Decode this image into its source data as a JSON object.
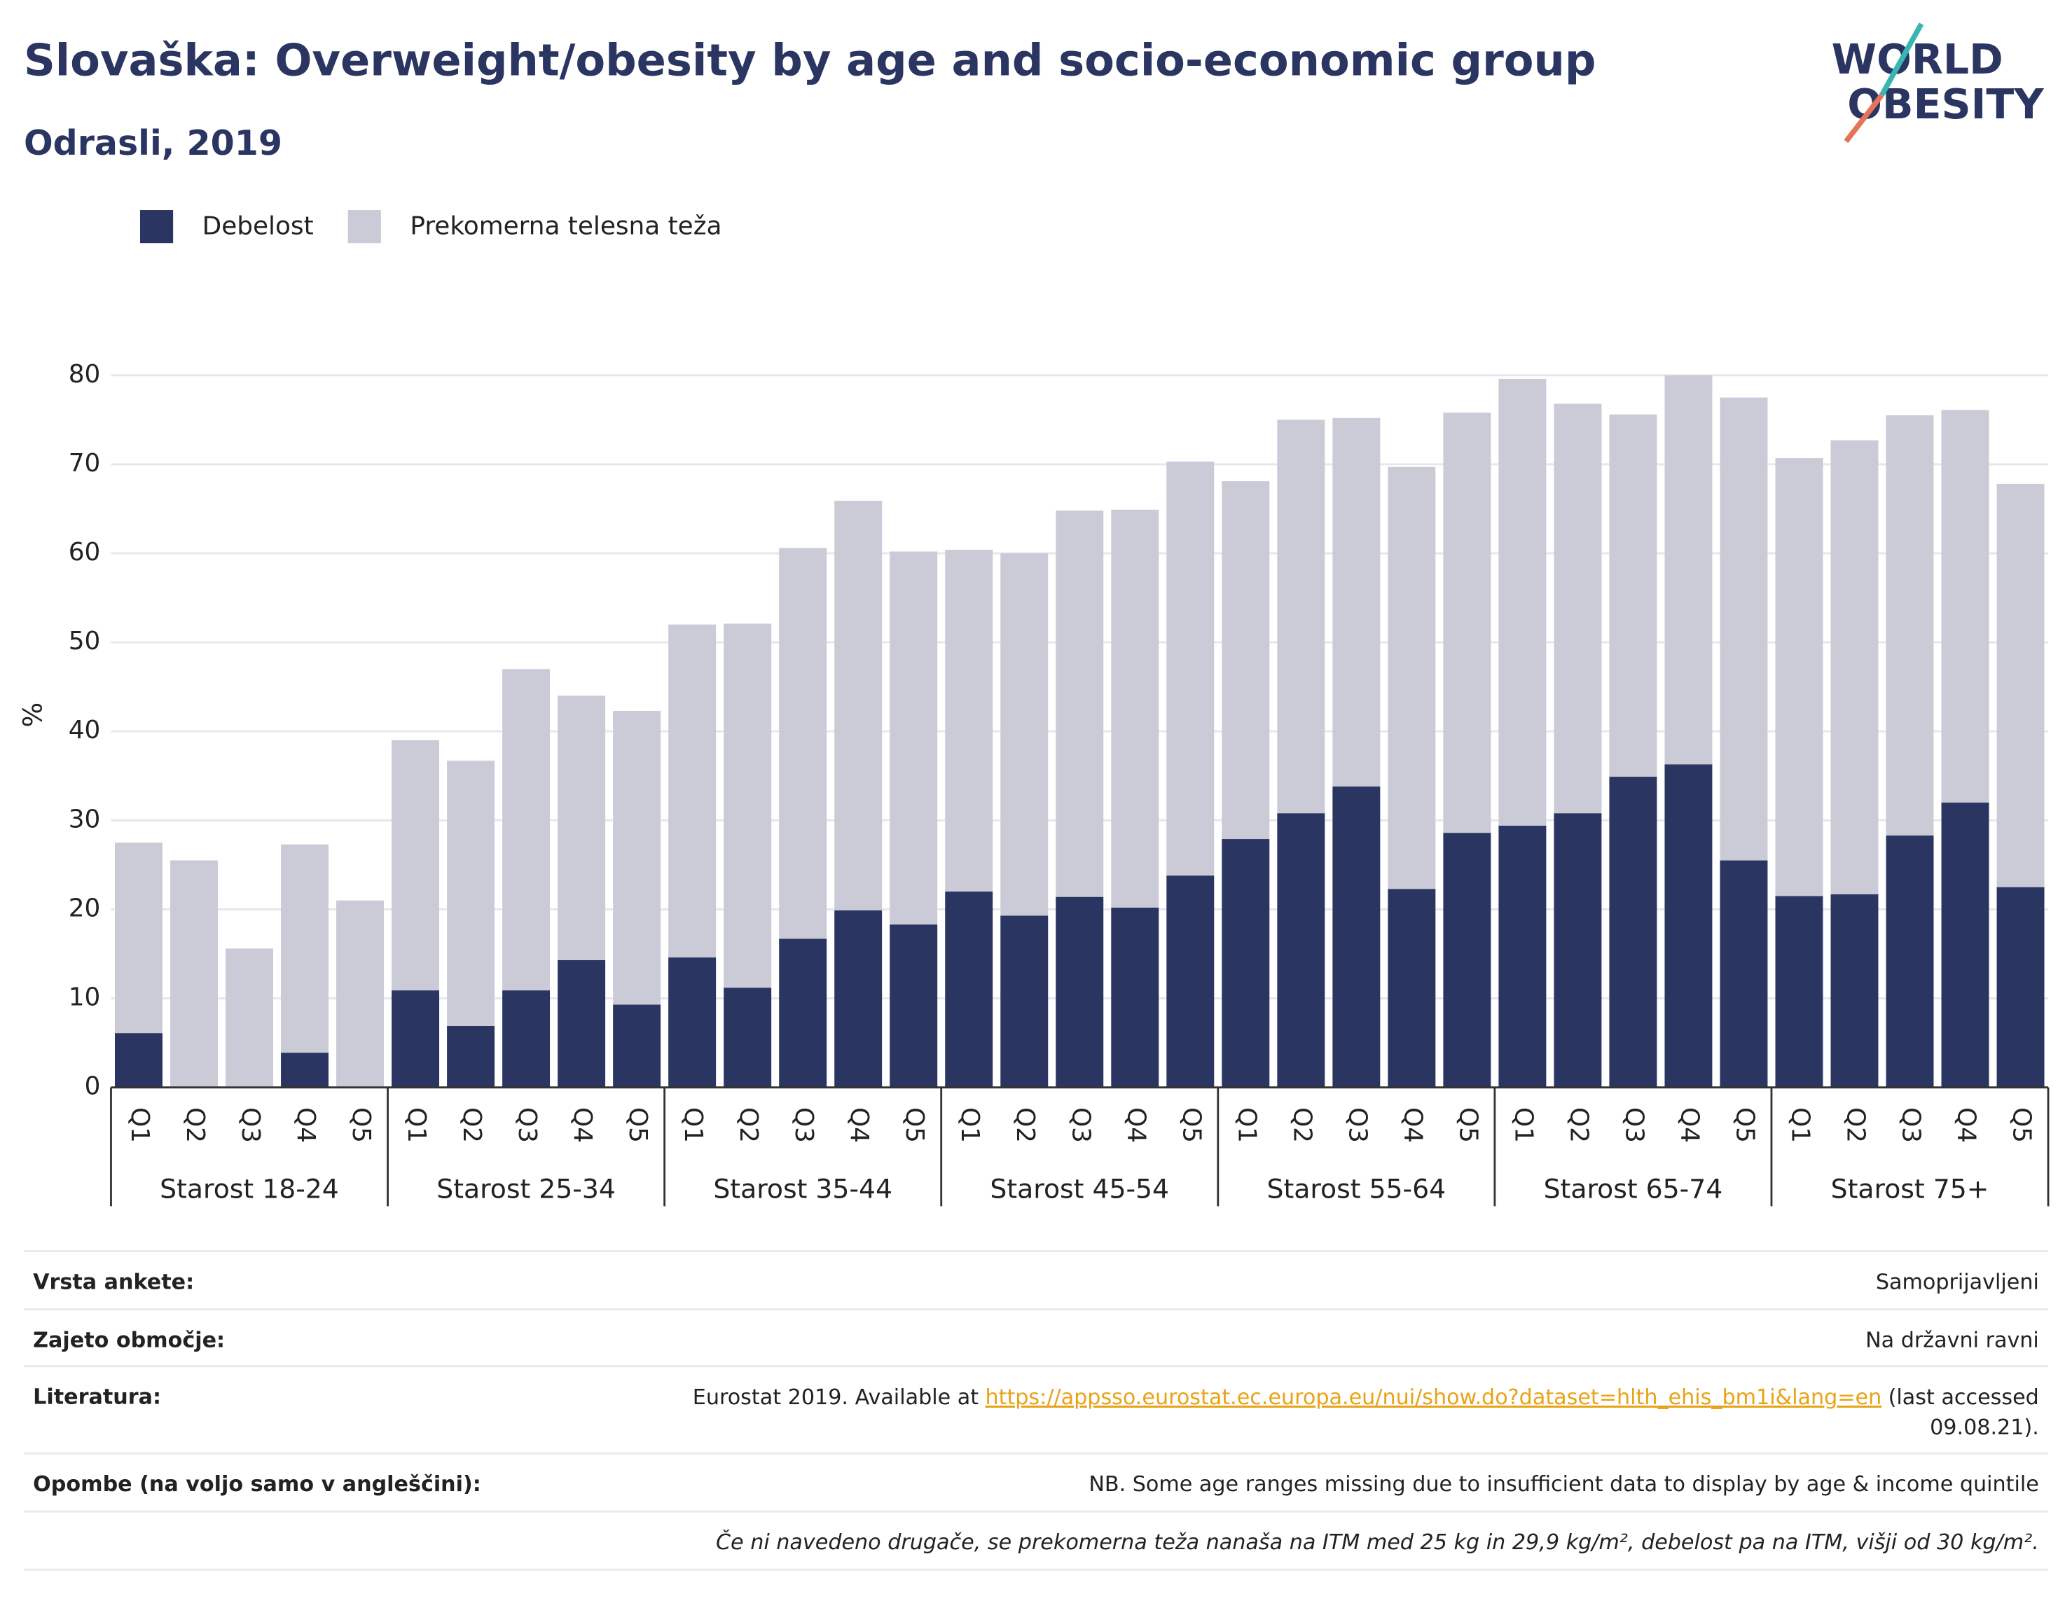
{
  "chart_data": {
    "type": "stacked_bar",
    "title": "Slovaška: Overweight/obesity by age and socio-economic group",
    "subtitle": "Odrasli, 2019",
    "logo": [
      "WORLD",
      "OBESITY"
    ],
    "ylabel": "%",
    "ylim": [
      0,
      80
    ],
    "yticks": [
      0,
      10,
      20,
      30,
      40,
      50,
      60,
      70,
      80
    ],
    "grid": true,
    "groups": [
      "Starost 18-24",
      "Starost 25-34",
      "Starost 35-44",
      "Starost 45-54",
      "Starost 55-64",
      "Starost 65-74",
      "Starost 75+"
    ],
    "categories": [
      "Q1",
      "Q2",
      "Q3",
      "Q4",
      "Q5",
      "Q1",
      "Q2",
      "Q3",
      "Q4",
      "Q5",
      "Q1",
      "Q2",
      "Q3",
      "Q4",
      "Q5",
      "Q1",
      "Q2",
      "Q3",
      "Q4",
      "Q5",
      "Q1",
      "Q2",
      "Q3",
      "Q4",
      "Q5",
      "Q1",
      "Q2",
      "Q3",
      "Q4",
      "Q5",
      "Q1",
      "Q2",
      "Q3",
      "Q4",
      "Q5"
    ],
    "series": [
      {
        "name": "Debelost",
        "color": "#2a3561",
        "values": [
          6.1,
          0,
          0,
          3.9,
          0,
          10.9,
          6.9,
          10.9,
          14.3,
          9.3,
          14.6,
          11.2,
          16.7,
          19.9,
          18.3,
          22.0,
          19.3,
          21.4,
          20.2,
          23.8,
          27.9,
          30.8,
          33.8,
          22.3,
          28.6,
          29.4,
          30.8,
          34.9,
          36.3,
          25.5,
          21.5,
          21.7,
          28.3,
          32.0,
          22.5
        ]
      },
      {
        "name": "Prekomerna telesna teža",
        "color": "#cacbd7",
        "values": [
          21.4,
          25.5,
          15.6,
          23.4,
          21.0,
          28.1,
          29.8,
          36.1,
          29.7,
          33.0,
          37.4,
          40.9,
          43.9,
          46.0,
          41.9,
          38.4,
          40.7,
          43.4,
          44.7,
          46.5,
          40.2,
          44.2,
          41.4,
          47.4,
          47.2,
          50.2,
          46.0,
          40.7,
          43.7,
          52.0,
          49.2,
          51.0,
          47.2,
          44.1,
          45.3
        ]
      }
    ]
  },
  "footer": {
    "rows": [
      {
        "label": "Vrsta ankete:",
        "value": "Samoprijavljeni"
      },
      {
        "label": "Zajeto območje:",
        "value": "Na državni ravni"
      },
      {
        "label": "Literatura:",
        "value": {
          "prefix": "Eurostat 2019. Available at",
          "link": "https://appsso.eurostat.ec.europa.eu/nui/show.do?dataset=hlth_ehis_bm1i&lang=en",
          "suffix": "(last accessed",
          "suffix2": "09.08.21)."
        }
      },
      {
        "label": "Opombe (na voljo samo v angleščini):",
        "value": "NB. Some age ranges missing due to insufficient data to display by age & income quintile"
      }
    ],
    "note": "Če ni navedeno drugače, se prekomerna teža nanaša na ITM med 25 kg in 29,9 kg/m², debelost pa na ITM, višji od 30 kg/m²."
  }
}
